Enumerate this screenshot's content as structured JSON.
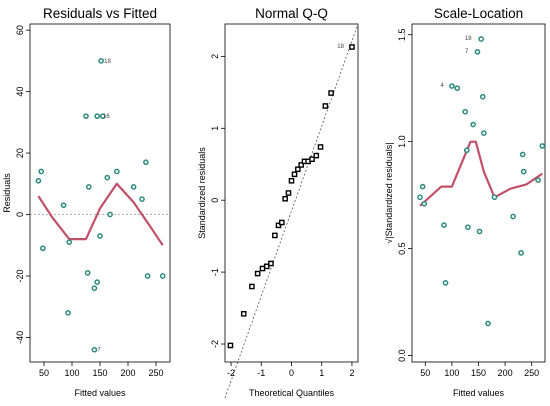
{
  "chart_data": [
    {
      "type": "scatter",
      "title": "Residuals vs Fitted",
      "xlabel": "Fitted values",
      "ylabel": "Residuals",
      "xlim": [
        25,
        275
      ],
      "ylim": [
        -48,
        62
      ],
      "xticks": [
        50,
        100,
        150,
        200,
        250
      ],
      "yticks": [
        -40,
        -20,
        0,
        20,
        40,
        60
      ],
      "point_color": "#2e8b7e",
      "smooth_color": "#c2506b",
      "refline": 0,
      "points": [
        {
          "x": 40,
          "y": 11
        },
        {
          "x": 45,
          "y": 14
        },
        {
          "x": 48,
          "y": -11
        },
        {
          "x": 85,
          "y": 3
        },
        {
          "x": 93,
          "y": -32
        },
        {
          "x": 95,
          "y": -9
        },
        {
          "x": 125,
          "y": 32
        },
        {
          "x": 128,
          "y": -19
        },
        {
          "x": 130,
          "y": 9
        },
        {
          "x": 140,
          "y": -24
        },
        {
          "x": 145,
          "y": 32
        },
        {
          "x": 145,
          "y": -22
        },
        {
          "x": 150,
          "y": -7
        },
        {
          "x": 152,
          "y": 50
        },
        {
          "x": 155,
          "y": 32
        },
        {
          "x": 163,
          "y": 12
        },
        {
          "x": 168,
          "y": 0
        },
        {
          "x": 180,
          "y": 14
        },
        {
          "x": 210,
          "y": 9
        },
        {
          "x": 225,
          "y": 5
        },
        {
          "x": 232,
          "y": 17
        },
        {
          "x": 235,
          "y": -20
        },
        {
          "x": 262,
          "y": -20
        },
        {
          "x": 140,
          "y": -44
        }
      ],
      "point_labels": [
        {
          "x": 152,
          "y": 50,
          "text": "18"
        },
        {
          "x": 150,
          "y": 32,
          "text": "16"
        },
        {
          "x": 140,
          "y": -44,
          "text": "7"
        }
      ],
      "smooth": {
        "x": [
          40,
          65,
          95,
          125,
          150,
          180,
          210,
          240,
          262
        ],
        "y": [
          6,
          -1,
          -8,
          -8,
          2,
          10,
          4,
          -4,
          -10
        ]
      }
    },
    {
      "type": "scatter",
      "title": "Normal Q-Q",
      "xlabel": "Theoretical Quantiles",
      "ylabel": "Standardized residuals",
      "xlim": [
        -2.2,
        2.2
      ],
      "ylim": [
        -2.25,
        2.45
      ],
      "xticks": [
        -2,
        -1,
        0,
        1,
        2
      ],
      "yticks": [
        -2,
        -1,
        0,
        1,
        2
      ],
      "point_color": "#000000",
      "points": [
        {
          "x": -2.02,
          "y": -2.02
        },
        {
          "x": -1.58,
          "y": -1.58
        },
        {
          "x": -1.31,
          "y": -1.2
        },
        {
          "x": -1.12,
          "y": -1.02
        },
        {
          "x": -0.96,
          "y": -0.95
        },
        {
          "x": -0.82,
          "y": -0.92
        },
        {
          "x": -0.68,
          "y": -0.88
        },
        {
          "x": -0.55,
          "y": -0.49
        },
        {
          "x": -0.43,
          "y": -0.35
        },
        {
          "x": -0.32,
          "y": -0.31
        },
        {
          "x": -0.21,
          "y": 0.02
        },
        {
          "x": -0.1,
          "y": 0.1
        },
        {
          "x": 0.0,
          "y": 0.27
        },
        {
          "x": 0.1,
          "y": 0.36
        },
        {
          "x": 0.21,
          "y": 0.43
        },
        {
          "x": 0.32,
          "y": 0.49
        },
        {
          "x": 0.43,
          "y": 0.54
        },
        {
          "x": 0.55,
          "y": 0.54
        },
        {
          "x": 0.68,
          "y": 0.57
        },
        {
          "x": 0.82,
          "y": 0.62
        },
        {
          "x": 0.96,
          "y": 0.74
        },
        {
          "x": 1.12,
          "y": 1.31
        },
        {
          "x": 1.31,
          "y": 1.49
        },
        {
          "x": 2.0,
          "y": 2.13
        }
      ],
      "point_labels": [
        {
          "x": 2.0,
          "y": 2.13,
          "text": "18"
        }
      ],
      "refline": {
        "x": [
          -2.2,
          2.2
        ],
        "y": [
          -2.75,
          2.45
        ]
      }
    },
    {
      "type": "scatter",
      "title": "Scale-Location",
      "xlabel": "Fitted values",
      "ylabel": "√|Standardized residuals|",
      "xlim": [
        25,
        275
      ],
      "ylim": [
        -0.03,
        1.55
      ],
      "xticks": [
        50,
        100,
        150,
        200,
        250
      ],
      "yticks": [
        0.0,
        0.5,
        1.0,
        1.5
      ],
      "point_color": "#2e8b7e",
      "smooth_color": "#c2506b",
      "points": [
        {
          "x": 40,
          "y": 0.74
        },
        {
          "x": 45,
          "y": 0.79
        },
        {
          "x": 48,
          "y": 0.71
        },
        {
          "x": 85,
          "y": 0.61
        },
        {
          "x": 88,
          "y": 0.34
        },
        {
          "x": 100,
          "y": 1.26
        },
        {
          "x": 110,
          "y": 1.25
        },
        {
          "x": 125,
          "y": 1.14
        },
        {
          "x": 128,
          "y": 0.96
        },
        {
          "x": 130,
          "y": 0.6
        },
        {
          "x": 140,
          "y": 1.08
        },
        {
          "x": 148,
          "y": 1.42
        },
        {
          "x": 152,
          "y": 0.58
        },
        {
          "x": 155,
          "y": 1.48
        },
        {
          "x": 158,
          "y": 1.21
        },
        {
          "x": 160,
          "y": 1.04
        },
        {
          "x": 168,
          "y": 0.15
        },
        {
          "x": 180,
          "y": 0.74
        },
        {
          "x": 215,
          "y": 0.65
        },
        {
          "x": 230,
          "y": 0.48
        },
        {
          "x": 233,
          "y": 0.94
        },
        {
          "x": 235,
          "y": 0.86
        },
        {
          "x": 262,
          "y": 0.82
        },
        {
          "x": 270,
          "y": 0.98
        }
      ],
      "point_labels": [
        {
          "x": 152,
          "y": 1.48,
          "text": "18"
        },
        {
          "x": 146,
          "y": 1.42,
          "text": "7"
        },
        {
          "x": 100,
          "y": 1.26,
          "text": "4"
        }
      ],
      "smooth": {
        "x": [
          40,
          80,
          100,
          135,
          145,
          160,
          180,
          210,
          240,
          270
        ],
        "y": [
          0.7,
          0.79,
          0.79,
          1.0,
          1.0,
          0.86,
          0.74,
          0.78,
          0.8,
          0.85
        ]
      }
    }
  ]
}
